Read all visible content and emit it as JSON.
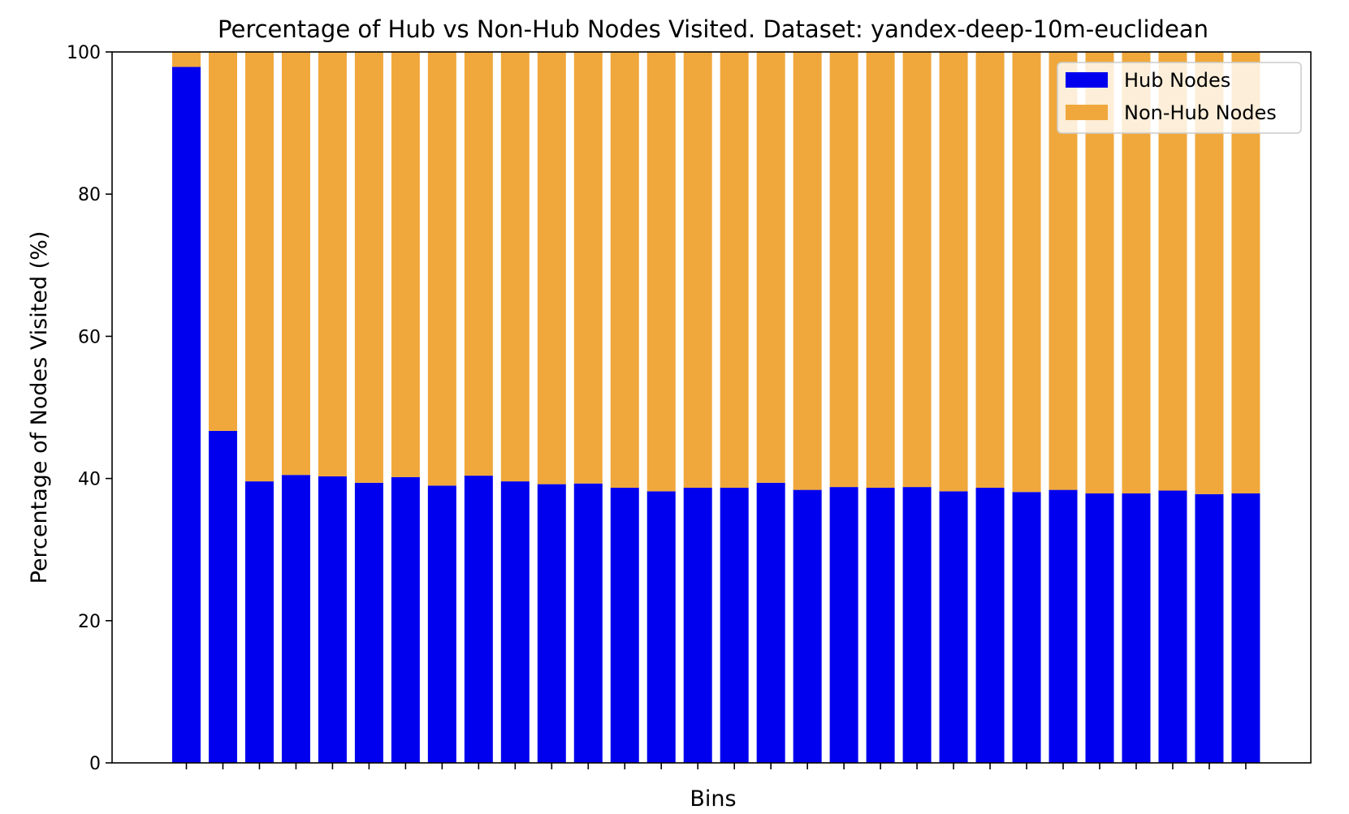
{
  "chart_data": {
    "type": "bar",
    "stacked": true,
    "title": "Percentage of Hub vs Non-Hub Nodes Visited. Dataset: yandex-deep-10m-euclidean",
    "xlabel": "Bins",
    "ylabel": "Percentage of Nodes Visited (%)",
    "ylim": [
      0,
      100
    ],
    "yticks": [
      "0",
      "20",
      "40",
      "60",
      "80",
      "100"
    ],
    "bin_count": 30,
    "grid": false,
    "legend_position": "top-right",
    "series": [
      {
        "name": "Hub Nodes",
        "color": "#0000ee",
        "values": [
          97.9,
          46.7,
          39.6,
          40.5,
          40.3,
          39.4,
          40.2,
          39.0,
          40.4,
          39.6,
          39.2,
          39.3,
          38.7,
          38.2,
          38.7,
          38.7,
          39.4,
          38.4,
          38.8,
          38.7,
          38.8,
          38.2,
          38.7,
          38.1,
          38.4,
          37.9,
          37.9,
          38.3,
          37.8,
          37.9
        ]
      },
      {
        "name": "Non-Hub Nodes",
        "color": "#f0a83c",
        "values": [
          2.1,
          53.3,
          60.4,
          59.5,
          59.7,
          60.6,
          59.8,
          61.0,
          59.6,
          60.4,
          60.8,
          60.7,
          61.3,
          61.8,
          61.3,
          61.3,
          60.6,
          61.6,
          61.2,
          61.3,
          61.2,
          61.8,
          61.3,
          61.9,
          61.6,
          62.1,
          62.1,
          61.7,
          62.2,
          62.1
        ]
      }
    ]
  }
}
